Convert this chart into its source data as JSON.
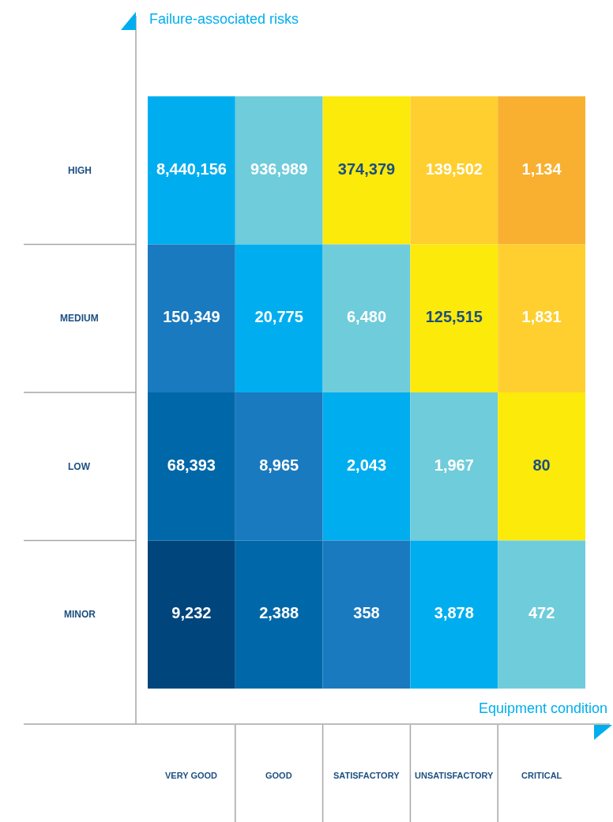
{
  "chart_data": {
    "type": "heatmap",
    "xlabel": "Equipment condition",
    "ylabel": "Failure-associated risks",
    "categories": [
      "VERY GOOD",
      "GOOD",
      "SATISFACTORY",
      "UNSATISFACTORY",
      "CRITICAL"
    ],
    "y_categories": [
      "HIGH",
      "MEDIUM",
      "LOW",
      "MINOR"
    ],
    "cells": [
      [
        8440156,
        936989,
        374379,
        139502,
        1134
      ],
      [
        150349,
        20775,
        6480,
        125515,
        1831
      ],
      [
        68393,
        8965,
        2043,
        1967,
        80
      ],
      [
        9232,
        2388,
        358,
        3878,
        472
      ]
    ],
    "cell_labels": [
      [
        "8,440,156",
        "936,989",
        "374,379",
        "139,502",
        "1,134"
      ],
      [
        "150,349",
        "20,775",
        "6,480",
        "125,515",
        "1,831"
      ],
      [
        "68,393",
        "8,965",
        "2,043",
        "1,967",
        "80"
      ],
      [
        "9,232",
        "2,388",
        "358",
        "3,878",
        "472"
      ]
    ],
    "colors": [
      [
        "#00aeef",
        "#6fccdb",
        "#fcea0b",
        "#fecf2f",
        "#f9b031"
      ],
      [
        "#1a7abf",
        "#00aeef",
        "#6fccdb",
        "#fcea0b",
        "#fecf2f"
      ],
      [
        "#0068a8",
        "#1a7abf",
        "#00aeef",
        "#6fccdb",
        "#fcea0b"
      ],
      [
        "#00457c",
        "#0068a8",
        "#1a7abf",
        "#00aeef",
        "#6fccdb"
      ]
    ]
  }
}
